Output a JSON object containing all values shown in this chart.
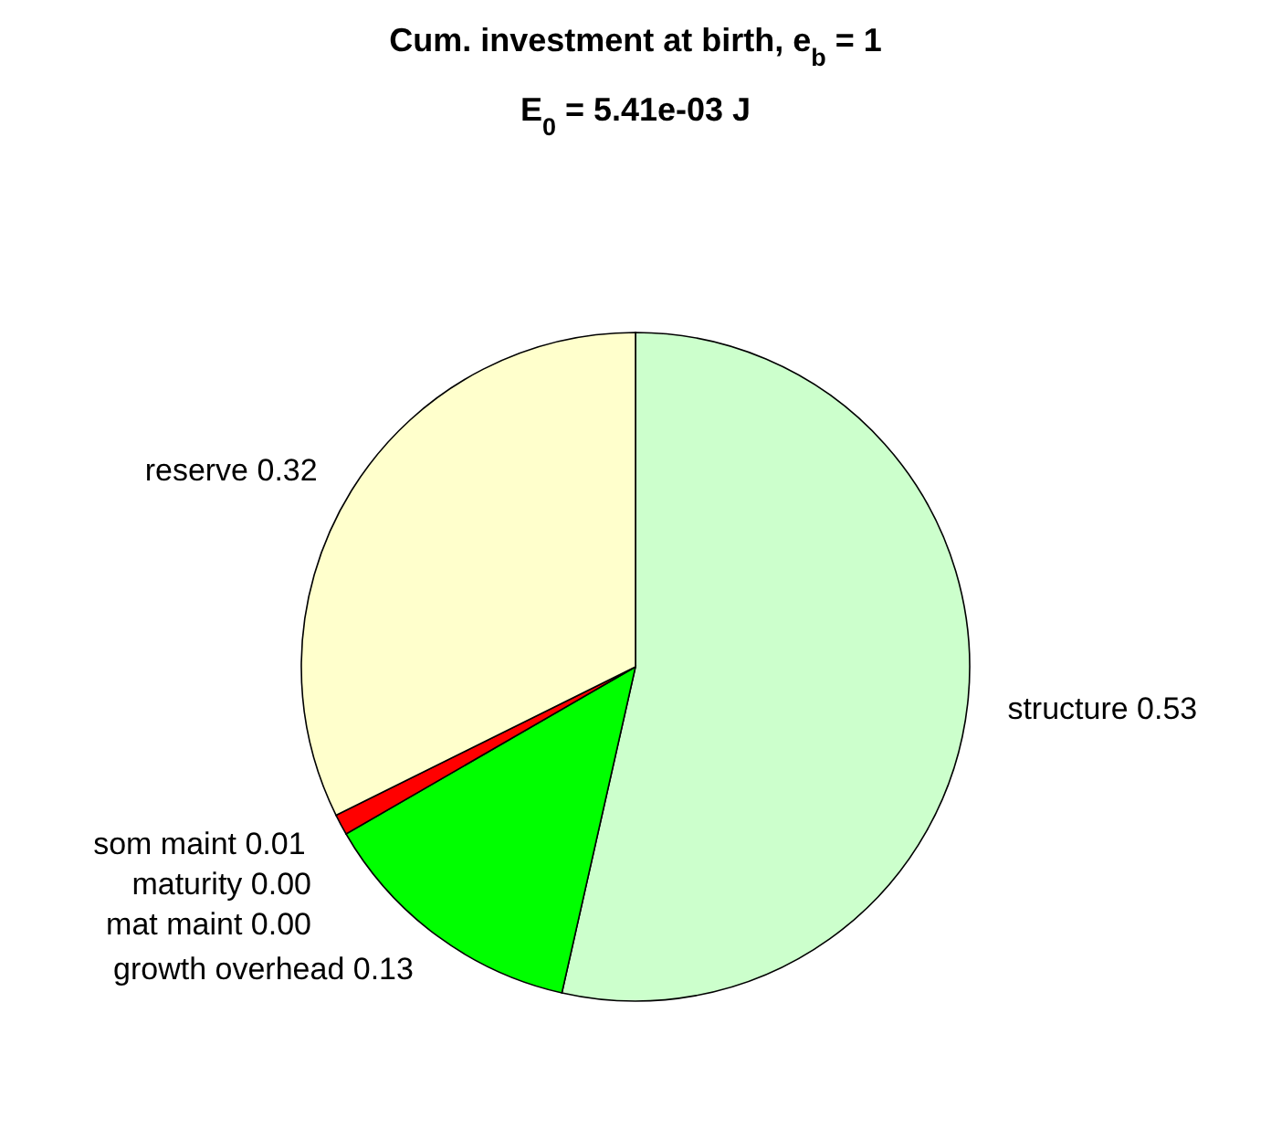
{
  "chart_data": {
    "type": "pie",
    "title": "Cum. investment at birth, e$_{b}$ = 1",
    "subtitle": "E$_{0}$ = 5.41e-03 J",
    "categories": [
      "structure",
      "growth overhead",
      "mat maint",
      "maturity",
      "som maint",
      "reserve"
    ],
    "values": [
      0.53,
      0.13,
      0,
      0,
      0.01,
      0.32
    ],
    "value_labels": [
      "0.53",
      "0.13",
      "0.00",
      "0.00",
      "0.01",
      "0.32"
    ],
    "colors": [
      "#ccffcc",
      "#00ff00",
      null,
      null,
      "#ff0000",
      "#ffffcc"
    ]
  }
}
